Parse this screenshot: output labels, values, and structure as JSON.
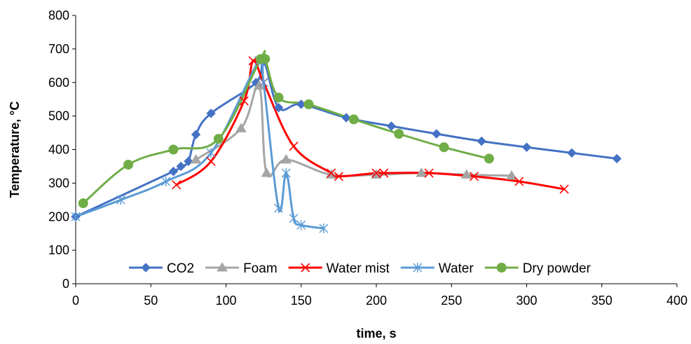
{
  "chart_data": {
    "type": "line",
    "title": "",
    "xlabel": "time, s",
    "ylabel": "Temperature, °C",
    "xlim": [
      0,
      400
    ],
    "ylim": [
      0,
      800
    ],
    "xticks": [
      0,
      50,
      100,
      150,
      200,
      250,
      300,
      350,
      400
    ],
    "yticks": [
      0,
      100,
      200,
      300,
      400,
      500,
      600,
      700,
      800
    ],
    "grid": false,
    "legend_position": "bottom-inside",
    "series": [
      {
        "name": "CO2",
        "color": "#4472C4",
        "marker": "diamond",
        "points": [
          [
            0,
            200
          ],
          [
            65,
            335
          ],
          [
            70,
            350
          ],
          [
            75,
            365
          ],
          [
            80,
            445
          ],
          [
            90,
            508
          ],
          [
            120,
            600
          ],
          [
            125,
            665
          ],
          [
            135,
            525
          ],
          [
            150,
            535
          ],
          [
            180,
            495
          ],
          [
            210,
            470
          ],
          [
            240,
            447
          ],
          [
            270,
            425
          ],
          [
            300,
            407
          ],
          [
            330,
            390
          ],
          [
            360,
            373
          ]
        ]
      },
      {
        "name": "Foam",
        "color": "#A5A5A5",
        "marker": "triangle",
        "points": [
          [
            80,
            370
          ],
          [
            110,
            463
          ],
          [
            122,
            590
          ],
          [
            127,
            330
          ],
          [
            140,
            370
          ],
          [
            170,
            325
          ],
          [
            200,
            325
          ],
          [
            230,
            330
          ],
          [
            260,
            325
          ],
          [
            290,
            322
          ]
        ]
      },
      {
        "name": "Water mist",
        "color": "#FF0000",
        "marker": "x",
        "points": [
          [
            67,
            295
          ],
          [
            90,
            365
          ],
          [
            112,
            545
          ],
          [
            118,
            665
          ],
          [
            125,
            600
          ],
          [
            145,
            410
          ],
          [
            170,
            330
          ],
          [
            175,
            320
          ],
          [
            200,
            330
          ],
          [
            205,
            330
          ],
          [
            235,
            330
          ],
          [
            265,
            320
          ],
          [
            295,
            305
          ],
          [
            325,
            282
          ]
        ]
      },
      {
        "name": "Water",
        "color": "#5B9BD5",
        "marker": "asterisk",
        "points": [
          [
            0,
            200
          ],
          [
            30,
            250
          ],
          [
            60,
            305
          ],
          [
            90,
            390
          ],
          [
            122,
            665
          ],
          [
            125,
            600
          ],
          [
            135,
            225
          ],
          [
            140,
            330
          ],
          [
            145,
            195
          ],
          [
            150,
            175
          ],
          [
            165,
            165
          ]
        ]
      },
      {
        "name": "Dry powder",
        "color": "#70AD47",
        "marker": "circle",
        "points": [
          [
            5,
            240
          ],
          [
            35,
            355
          ],
          [
            65,
            400
          ],
          [
            95,
            432
          ],
          [
            123,
            670
          ],
          [
            126,
            670
          ],
          [
            135,
            555
          ],
          [
            155,
            535
          ],
          [
            185,
            490
          ],
          [
            215,
            447
          ],
          [
            245,
            407
          ],
          [
            275,
            373
          ]
        ]
      }
    ]
  }
}
